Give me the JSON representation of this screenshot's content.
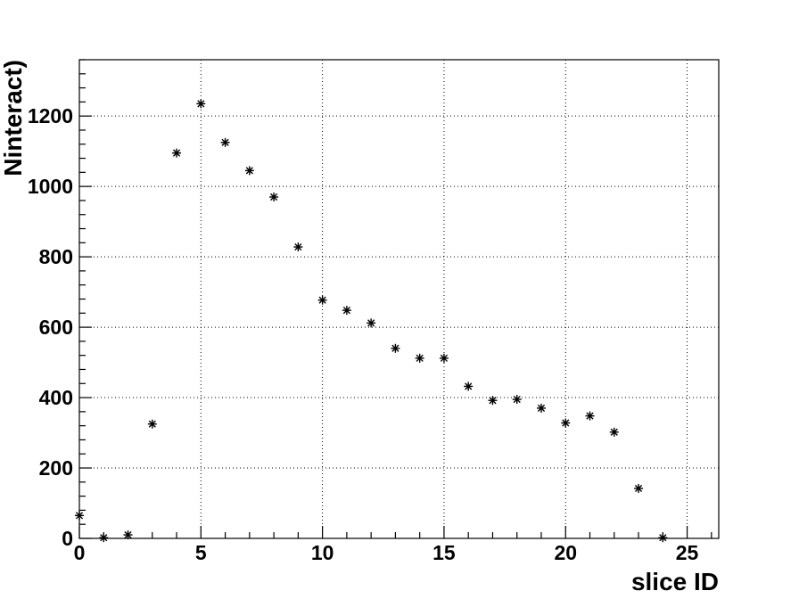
{
  "chart_data": {
    "type": "scatter",
    "title": "",
    "xlabel": "slice ID",
    "ylabel": "Ninteract)",
    "xlim": [
      0,
      26.3
    ],
    "ylim": [
      0,
      1360
    ],
    "grid": true,
    "marker": "asterisk",
    "x_ticks": [
      0,
      5,
      10,
      15,
      20,
      25
    ],
    "x_tick_labels": [
      "0",
      "5",
      "10",
      "15",
      "20",
      "25"
    ],
    "y_ticks": [
      0,
      200,
      400,
      600,
      800,
      1000,
      1200
    ],
    "y_tick_labels": [
      "0",
      "200",
      "400",
      "600",
      "800",
      "1000",
      "1200"
    ],
    "series": [
      {
        "x": [
          0,
          1,
          2,
          3,
          4,
          5,
          6,
          7,
          8,
          9,
          10,
          11,
          12,
          13,
          14,
          15,
          16,
          17,
          18,
          19,
          20,
          21,
          22,
          23,
          24
        ],
        "y": [
          65,
          2,
          10,
          325,
          1095,
          1235,
          1125,
          1045,
          970,
          828,
          677,
          648,
          612,
          540,
          512,
          512,
          432,
          392,
          395,
          370,
          328,
          348,
          302,
          142,
          2
        ]
      }
    ]
  }
}
